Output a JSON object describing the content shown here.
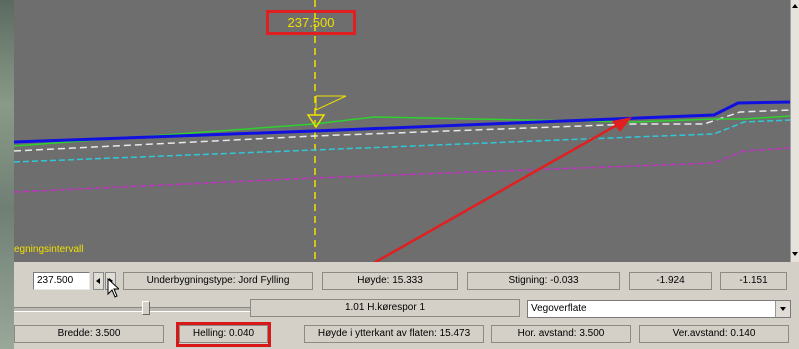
{
  "canvas": {
    "station_label": "237.500",
    "interval_label": "egningsintervall"
  },
  "toolbar": {
    "station_input_value": "237.500",
    "underbygningstype": "Underbygningstype: Jord  Fylling",
    "hoyde": "Høyde: 15.333",
    "stigning": "Stigning: -0.033",
    "val_1": "-1.924",
    "val_2": "-1.151",
    "lane_label": "1.01  H.kørespor 1",
    "surface_select_value": "Vegoverflate",
    "bredde": "Bredde: 3.500",
    "helling": "Helling: 0.040",
    "hoyde_ytterkant": "Høyde i ytterkant av flaten: 15.473",
    "hor_avstand": "Hor. avstand: 3.500",
    "ver_avstand": "Ver.avstand: 0.140"
  },
  "colors": {
    "canvas_bg": "#6e6e6e",
    "blue_line": "#1010e0",
    "green_line": "#30d030",
    "cyan_dash": "#30c8d8",
    "magenta_dash": "#c030c0",
    "white_dash": "#e8e8e8",
    "annotation_red": "#e02020",
    "marker_yellow": "#f0e000"
  }
}
